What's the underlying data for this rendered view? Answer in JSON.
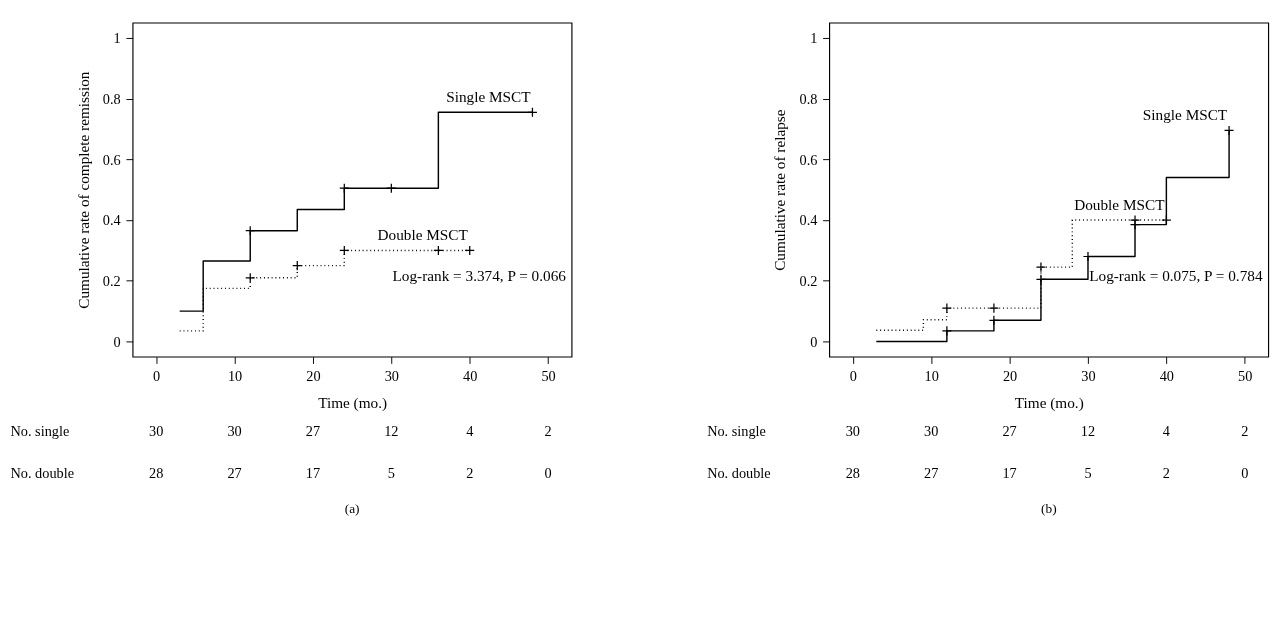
{
  "chart_data": [
    {
      "type": "step",
      "xlabel": "Time (mo.)",
      "ylabel": "Cumulative rate of complete remission",
      "xlim": [
        -3,
        53
      ],
      "ylim": [
        -0.05,
        1.05
      ],
      "xticks": [
        0,
        10,
        20,
        30,
        40,
        50
      ],
      "yticks": [
        0,
        0.2,
        0.4,
        0.6,
        0.8,
        1
      ],
      "grid": false,
      "series": [
        {
          "name": "Single MSCT",
          "color": "#000000",
          "line_style": "solid",
          "x": [
            3,
            6,
            12,
            18,
            24,
            36,
            48
          ],
          "values": [
            0.1,
            0.265,
            0.365,
            0.435,
            0.505,
            0.755,
            0.755
          ]
        },
        {
          "name": "Double MSCT",
          "color": "#000000",
          "line_style": "dotted",
          "x": [
            3,
            6,
            12,
            18,
            24,
            40
          ],
          "values": [
            0.035,
            0.175,
            0.21,
            0.25,
            0.3,
            0.3
          ]
        },
        {
          "type": "scatter",
          "marker": "cross",
          "color": "#000000",
          "x": [
            12,
            24,
            30,
            48
          ],
          "values": [
            0.365,
            0.505,
            0.505,
            0.755
          ]
        },
        {
          "type": "scatter",
          "marker": "cross",
          "color": "#000000",
          "x": [
            12,
            18,
            24,
            36,
            40
          ],
          "values": [
            0.21,
            0.25,
            0.3,
            0.3,
            0.3
          ]
        }
      ],
      "annotations": [
        "Log-rank = 3.374, P = 0.066",
        "No. single",
        "30",
        "30",
        "27",
        "12",
        "4",
        "2",
        "No. double",
        "28",
        "27",
        "17",
        "5",
        "2",
        "0",
        "(a)"
      ]
    },
    {
      "type": "step",
      "xlabel": "Time (mo.)",
      "ylabel": "Cumulative rate of relapse",
      "xlim": [
        -3,
        53
      ],
      "ylim": [
        -0.05,
        1.05
      ],
      "xticks": [
        0,
        10,
        20,
        30,
        40,
        50
      ],
      "yticks": [
        0,
        0.2,
        0.4,
        0.6,
        0.8,
        1
      ],
      "grid": false,
      "series": [
        {
          "name": "Single MSCT",
          "color": "#000000",
          "line_style": "solid",
          "x": [
            3,
            12,
            18,
            24,
            30,
            36,
            40,
            48,
            48
          ],
          "values": [
            0,
            0.035,
            0.07,
            0.205,
            0.28,
            0.385,
            0.54,
            0.695,
            0.695
          ]
        },
        {
          "name": "Double MSCT",
          "color": "#000000",
          "line_style": "dotted",
          "x": [
            3,
            9,
            12,
            24,
            28,
            40
          ],
          "values": [
            0.037,
            0.072,
            0.11,
            0.245,
            0.4,
            0.4
          ]
        },
        {
          "type": "scatter",
          "marker": "cross",
          "color": "#000000",
          "x": [
            12,
            18,
            24,
            30,
            36,
            48
          ],
          "values": [
            0.035,
            0.07,
            0.205,
            0.28,
            0.385,
            0.695
          ]
        },
        {
          "type": "scatter",
          "marker": "cross",
          "color": "#000000",
          "x": [
            12,
            18,
            24,
            36,
            40
          ],
          "values": [
            0.11,
            0.11,
            0.245,
            0.4,
            0.4
          ]
        }
      ],
      "annotations": [
        "Log-rank = 0.075, P = 0.784",
        "No. single",
        "30",
        "30",
        "27",
        "12",
        "4",
        "2",
        "No. double",
        "28",
        "27",
        "17",
        "5",
        "2",
        "0",
        "(b)"
      ]
    }
  ]
}
